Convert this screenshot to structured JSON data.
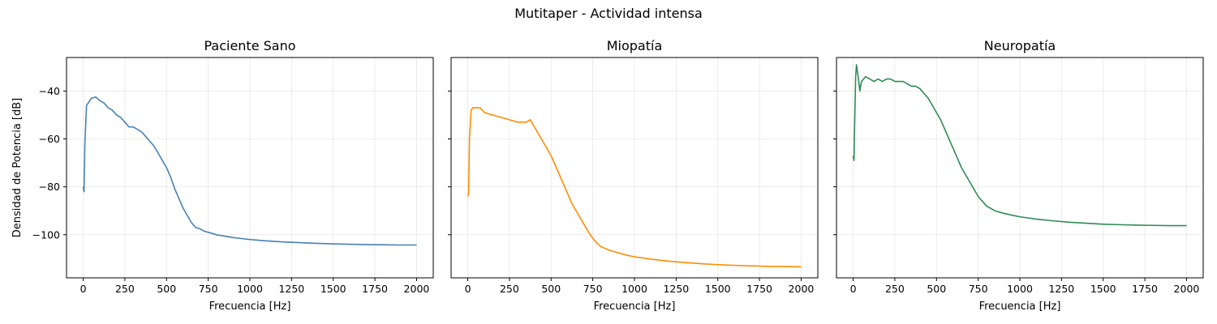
{
  "figure": {
    "suptitle": "Mutitaper - Actividad intensa"
  },
  "chart_data": [
    {
      "type": "line",
      "title": "Paciente Sano",
      "xlabel": "Frecuencia [Hz]",
      "ylabel": "Densidad de Potencia [dB]",
      "xlim": [
        -100,
        2100
      ],
      "ylim": [
        -118,
        -26
      ],
      "xticks": [
        0,
        250,
        500,
        750,
        1000,
        1250,
        1500,
        1750,
        2000
      ],
      "yticks": [
        -100,
        -80,
        -60,
        -40
      ],
      "grid": true,
      "color": "#4682b4",
      "x": [
        0,
        5,
        10,
        20,
        30,
        50,
        75,
        100,
        125,
        150,
        175,
        200,
        225,
        250,
        275,
        300,
        325,
        350,
        375,
        400,
        425,
        450,
        475,
        500,
        525,
        550,
        575,
        600,
        625,
        650,
        675,
        700,
        725,
        750,
        775,
        800,
        850,
        900,
        950,
        1000,
        1100,
        1200,
        1300,
        1400,
        1500,
        1600,
        1700,
        1800,
        1900,
        2000
      ],
      "y": [
        -80,
        -82,
        -62,
        -46,
        -45,
        -43,
        -42.5,
        -44,
        -45,
        -47,
        -48,
        -50,
        -51,
        -53,
        -55,
        -55,
        -56,
        -57,
        -59,
        -61,
        -63,
        -66,
        -69,
        -72,
        -76,
        -81,
        -85,
        -89,
        -92,
        -95,
        -97,
        -97.5,
        -98.5,
        -99,
        -99.5,
        -100,
        -100.6,
        -101.2,
        -101.6,
        -102,
        -102.6,
        -103,
        -103.3,
        -103.6,
        -103.8,
        -104,
        -104.1,
        -104.2,
        -104.3,
        -104.3
      ]
    },
    {
      "type": "line",
      "title": "Miopatía",
      "xlabel": "Frecuencia [Hz]",
      "ylabel": "",
      "xlim": [
        -100,
        2100
      ],
      "ylim": [
        -118,
        -26
      ],
      "xticks": [
        0,
        250,
        500,
        750,
        1000,
        1250,
        1500,
        1750,
        2000
      ],
      "yticks": [
        -100,
        -80,
        -60,
        -40
      ],
      "grid": true,
      "color": "#ff8c00",
      "x": [
        0,
        5,
        10,
        20,
        30,
        50,
        75,
        100,
        150,
        200,
        250,
        300,
        350,
        375,
        400,
        425,
        450,
        475,
        500,
        525,
        550,
        575,
        600,
        625,
        650,
        675,
        700,
        725,
        750,
        775,
        800,
        850,
        900,
        950,
        1000,
        1100,
        1200,
        1300,
        1400,
        1500,
        1600,
        1700,
        1800,
        1900,
        2000
      ],
      "y": [
        -84,
        -83,
        -60,
        -48,
        -47,
        -47,
        -47,
        -49,
        -50,
        -51,
        -52,
        -53,
        -53,
        -52,
        -55,
        -58,
        -61,
        -64,
        -67,
        -71,
        -75,
        -79,
        -83,
        -87,
        -90,
        -93,
        -96,
        -99,
        -101.5,
        -103.5,
        -105,
        -106.5,
        -107.5,
        -108.5,
        -109.2,
        -110.2,
        -111,
        -111.6,
        -112.1,
        -112.5,
        -112.8,
        -113,
        -113.2,
        -113.3,
        -113.4
      ]
    },
    {
      "type": "line",
      "title": "Neuropatía",
      "xlabel": "Frecuencia [Hz]",
      "ylabel": "",
      "xlim": [
        -100,
        2100
      ],
      "ylim": [
        -118,
        -26
      ],
      "xticks": [
        0,
        250,
        500,
        750,
        1000,
        1250,
        1500,
        1750,
        2000
      ],
      "yticks": [
        -100,
        -80,
        -60,
        -40
      ],
      "grid": true,
      "color": "#2e8b57",
      "x": [
        0,
        5,
        10,
        15,
        20,
        30,
        40,
        50,
        75,
        100,
        125,
        150,
        175,
        200,
        225,
        250,
        275,
        300,
        325,
        350,
        375,
        400,
        425,
        450,
        475,
        500,
        525,
        550,
        575,
        600,
        625,
        650,
        675,
        700,
        725,
        750,
        775,
        800,
        850,
        900,
        950,
        1000,
        1100,
        1200,
        1300,
        1400,
        1500,
        1600,
        1700,
        1800,
        1900,
        2000
      ],
      "y": [
        -67,
        -69,
        -50,
        -34,
        -29,
        -34,
        -40,
        -36,
        -34,
        -35,
        -36,
        -35,
        -36,
        -35,
        -35,
        -36,
        -36,
        -36,
        -37,
        -38,
        -38,
        -39,
        -41,
        -43,
        -46,
        -49,
        -52,
        -56,
        -60,
        -64,
        -68,
        -72,
        -75,
        -78,
        -81,
        -84,
        -86,
        -88,
        -90,
        -91,
        -91.8,
        -92.5,
        -93.5,
        -94.2,
        -94.8,
        -95.2,
        -95.6,
        -95.8,
        -96,
        -96.1,
        -96.2,
        -96.2
      ]
    }
  ]
}
